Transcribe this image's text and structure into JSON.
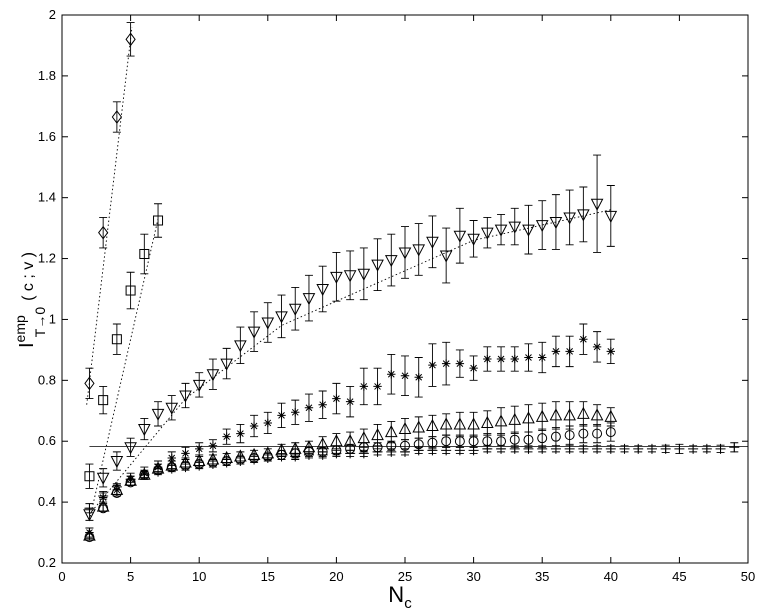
{
  "chart_data": {
    "type": "scatter",
    "title": "",
    "xlabel": "N",
    "xlabel_subscript": "c",
    "ylabel": "I",
    "ylabel_superscript": "emp",
    "ylabel_subscript": "T→0",
    "ylabel_args": "( c ; v )",
    "xlim": [
      0,
      50
    ],
    "ylim": [
      0.2,
      2.0
    ],
    "xticks": [
      0,
      5,
      10,
      15,
      20,
      25,
      30,
      35,
      40,
      45,
      50
    ],
    "yticks": [
      0.2,
      0.4,
      0.6,
      0.8,
      1.0,
      1.2,
      1.4,
      1.6,
      1.8,
      2.0
    ],
    "xtick_labels": [
      "0",
      "5",
      "10",
      "15",
      "20",
      "25",
      "30",
      "35",
      "40",
      "45",
      "50"
    ],
    "ytick_labels": [
      "0.2",
      "0.4",
      "0.6",
      "0.8",
      "1",
      "1.2",
      "1.4",
      "1.6",
      "1.8",
      "2"
    ],
    "grid": false,
    "legend": "none",
    "reference_line": {
      "y": 0.583,
      "x_range": [
        2,
        50
      ]
    },
    "series": [
      {
        "marker": "diamond",
        "x": [
          2,
          3,
          4,
          5
        ],
        "y": [
          0.79,
          1.285,
          1.665,
          1.92
        ],
        "err": [
          0.05,
          0.05,
          0.05,
          0.055
        ],
        "fit": [
          [
            1.8,
            0.72
          ],
          [
            5.1,
            1.96
          ]
        ]
      },
      {
        "marker": "square",
        "x": [
          2,
          3,
          4,
          5,
          6,
          7
        ],
        "y": [
          0.485,
          0.735,
          0.935,
          1.095,
          1.215,
          1.325
        ],
        "err": [
          0.04,
          0.045,
          0.05,
          0.06,
          0.065,
          0.055
        ],
        "fit": [
          [
            2,
            0.34
          ],
          [
            7,
            1.33
          ]
        ]
      },
      {
        "marker": "triangle-down",
        "x": [
          2,
          3,
          4,
          5,
          6,
          7,
          8,
          9,
          10,
          11,
          12,
          13,
          14,
          15,
          16,
          17,
          18,
          19,
          20,
          21,
          22,
          23,
          24,
          25,
          26,
          27,
          28,
          29,
          30,
          31,
          32,
          33,
          34,
          35,
          36,
          37,
          38,
          39,
          40
        ],
        "y": [
          0.36,
          0.48,
          0.535,
          0.58,
          0.64,
          0.69,
          0.71,
          0.75,
          0.785,
          0.82,
          0.855,
          0.915,
          0.96,
          0.99,
          1.01,
          1.035,
          1.07,
          1.1,
          1.14,
          1.145,
          1.15,
          1.18,
          1.195,
          1.22,
          1.23,
          1.255,
          1.21,
          1.275,
          1.265,
          1.285,
          1.295,
          1.305,
          1.295,
          1.31,
          1.32,
          1.335,
          1.345,
          1.38,
          1.34
        ],
        "err": [
          0.02,
          0.03,
          0.03,
          0.03,
          0.035,
          0.04,
          0.04,
          0.04,
          0.04,
          0.05,
          0.05,
          0.06,
          0.065,
          0.065,
          0.07,
          0.07,
          0.075,
          0.075,
          0.08,
          0.08,
          0.085,
          0.085,
          0.085,
          0.085,
          0.085,
          0.085,
          0.09,
          0.09,
          0.06,
          0.05,
          0.05,
          0.06,
          0.08,
          0.08,
          0.09,
          0.09,
          0.09,
          0.16,
          0.1
        ],
        "fit": [
          [
            2,
            0.36
          ],
          [
            9,
            0.74
          ],
          [
            16,
            0.98
          ],
          [
            30,
            1.26
          ],
          [
            40,
            1.36
          ]
        ]
      },
      {
        "marker": "star",
        "x": [
          2,
          3,
          4,
          5,
          6,
          7,
          8,
          9,
          10,
          11,
          12,
          13,
          14,
          15,
          16,
          17,
          18,
          19,
          20,
          21,
          22,
          23,
          24,
          25,
          26,
          27,
          28,
          29,
          30,
          31,
          32,
          33,
          34,
          35,
          36,
          37,
          38,
          39,
          40
        ],
        "y": [
          0.3,
          0.415,
          0.44,
          0.475,
          0.495,
          0.515,
          0.545,
          0.56,
          0.575,
          0.585,
          0.615,
          0.625,
          0.65,
          0.66,
          0.685,
          0.695,
          0.71,
          0.72,
          0.74,
          0.73,
          0.78,
          0.78,
          0.82,
          0.815,
          0.81,
          0.85,
          0.855,
          0.855,
          0.84,
          0.87,
          0.87,
          0.87,
          0.875,
          0.875,
          0.895,
          0.895,
          0.935,
          0.91,
          0.895
        ],
        "err": [
          0.015,
          0.02,
          0.02,
          0.02,
          0.02,
          0.02,
          0.02,
          0.02,
          0.02,
          0.02,
          0.025,
          0.03,
          0.035,
          0.035,
          0.04,
          0.04,
          0.045,
          0.045,
          0.05,
          0.05,
          0.06,
          0.06,
          0.065,
          0.065,
          0.065,
          0.07,
          0.07,
          0.045,
          0.04,
          0.04,
          0.04,
          0.04,
          0.045,
          0.05,
          0.05,
          0.05,
          0.05,
          0.05,
          0.04
        ]
      },
      {
        "marker": "triangle-up",
        "x": [
          2,
          3,
          4,
          5,
          6,
          7,
          8,
          9,
          10,
          11,
          12,
          13,
          14,
          15,
          16,
          17,
          18,
          19,
          20,
          21,
          22,
          23,
          24,
          25,
          26,
          27,
          28,
          29,
          30,
          31,
          32,
          33,
          34,
          35,
          36,
          37,
          38,
          39,
          40
        ],
        "y": [
          0.29,
          0.385,
          0.44,
          0.47,
          0.49,
          0.51,
          0.52,
          0.53,
          0.535,
          0.54,
          0.545,
          0.55,
          0.555,
          0.56,
          0.57,
          0.575,
          0.58,
          0.59,
          0.6,
          0.6,
          0.61,
          0.62,
          0.63,
          0.64,
          0.645,
          0.65,
          0.655,
          0.655,
          0.655,
          0.66,
          0.665,
          0.67,
          0.675,
          0.68,
          0.685,
          0.685,
          0.69,
          0.685,
          0.68
        ],
        "err": [
          0.01,
          0.015,
          0.015,
          0.015,
          0.015,
          0.015,
          0.015,
          0.015,
          0.015,
          0.015,
          0.015,
          0.015,
          0.015,
          0.015,
          0.02,
          0.02,
          0.02,
          0.025,
          0.025,
          0.03,
          0.03,
          0.035,
          0.035,
          0.035,
          0.035,
          0.035,
          0.035,
          0.04,
          0.04,
          0.04,
          0.045,
          0.045,
          0.045,
          0.045,
          0.045,
          0.045,
          0.04,
          0.035,
          0.03
        ]
      },
      {
        "marker": "circle",
        "x": [
          2,
          3,
          4,
          5,
          6,
          7,
          8,
          9,
          10,
          11,
          12,
          13,
          14,
          15,
          16,
          17,
          18,
          19,
          20,
          21,
          22,
          23,
          24,
          25,
          26,
          27,
          28,
          29,
          30,
          31,
          32,
          33,
          34,
          35,
          36,
          37,
          38,
          39,
          40
        ],
        "y": [
          0.285,
          0.38,
          0.43,
          0.465,
          0.49,
          0.505,
          0.515,
          0.52,
          0.525,
          0.53,
          0.535,
          0.54,
          0.545,
          0.55,
          0.555,
          0.56,
          0.565,
          0.565,
          0.57,
          0.575,
          0.58,
          0.58,
          0.585,
          0.585,
          0.59,
          0.595,
          0.6,
          0.6,
          0.6,
          0.6,
          0.6,
          0.605,
          0.605,
          0.61,
          0.615,
          0.62,
          0.625,
          0.625,
          0.63
        ],
        "err": [
          0.01,
          0.01,
          0.01,
          0.01,
          0.01,
          0.01,
          0.01,
          0.01,
          0.01,
          0.01,
          0.01,
          0.01,
          0.01,
          0.01,
          0.015,
          0.015,
          0.015,
          0.015,
          0.015,
          0.015,
          0.015,
          0.015,
          0.015,
          0.02,
          0.02,
          0.02,
          0.02,
          0.02,
          0.02,
          0.025,
          0.025,
          0.025,
          0.025,
          0.03,
          0.03,
          0.03,
          0.03,
          0.03,
          0.03
        ]
      },
      {
        "marker": "plus",
        "x": [
          2,
          3,
          4,
          5,
          6,
          7,
          8,
          9,
          10,
          11,
          12,
          13,
          14,
          15,
          16,
          17,
          18,
          19,
          20,
          21,
          22,
          23,
          24,
          25,
          26,
          27,
          28,
          29,
          30,
          31,
          32,
          33,
          34,
          35,
          36,
          37,
          38,
          39,
          40,
          41,
          42,
          43,
          44,
          45,
          46,
          47,
          48,
          49
        ],
        "y": [
          0.38,
          0.42,
          0.45,
          0.475,
          0.49,
          0.5,
          0.51,
          0.515,
          0.52,
          0.525,
          0.53,
          0.535,
          0.54,
          0.545,
          0.55,
          0.55,
          0.555,
          0.555,
          0.56,
          0.56,
          0.56,
          0.565,
          0.565,
          0.565,
          0.57,
          0.57,
          0.57,
          0.57,
          0.57,
          0.575,
          0.575,
          0.575,
          0.575,
          0.575,
          0.575,
          0.575,
          0.575,
          0.575,
          0.575,
          0.575,
          0.575,
          0.575,
          0.575,
          0.575,
          0.575,
          0.575,
          0.575,
          0.58
        ],
        "err": [
          0.015,
          0.01,
          0.01,
          0.01,
          0.01,
          0.01,
          0.01,
          0.01,
          0.01,
          0.01,
          0.01,
          0.01,
          0.01,
          0.01,
          0.01,
          0.01,
          0.01,
          0.01,
          0.01,
          0.01,
          0.01,
          0.01,
          0.01,
          0.01,
          0.01,
          0.01,
          0.01,
          0.01,
          0.01,
          0.01,
          0.01,
          0.01,
          0.01,
          0.01,
          0.01,
          0.01,
          0.01,
          0.01,
          0.01,
          0.01,
          0.01,
          0.01,
          0.012,
          0.015,
          0.01,
          0.01,
          0.012,
          0.015
        ]
      }
    ]
  }
}
